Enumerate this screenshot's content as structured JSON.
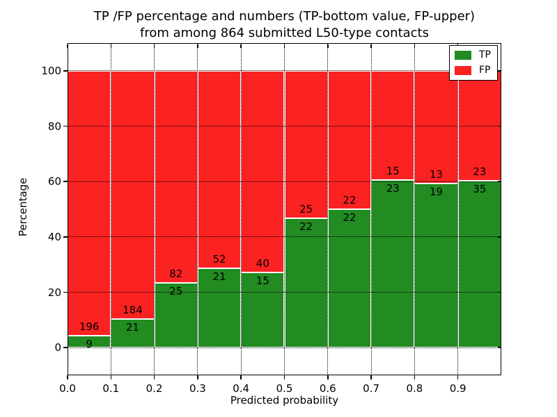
{
  "figure": {
    "title_line1": "TP /FP percentage and numbers (TP-bottom value, FP-upper)",
    "title_line2": "from among 864 submitted L50-type contacts",
    "xlabel": "Predicted probability",
    "ylabel": "Percentage"
  },
  "legend": {
    "items": [
      {
        "label": "TP",
        "color": "#228b22"
      },
      {
        "label": "FP",
        "color": "#fb2222"
      }
    ]
  },
  "chart_data": {
    "type": "bar",
    "stacked": true,
    "title": "TP /FP percentage and numbers (TP-bottom value, FP-upper) from among 864 submitted L50-type contacts",
    "xlabel": "Predicted probability",
    "ylabel": "Percentage",
    "bin_starts": [
      0.0,
      0.1,
      0.2,
      0.3,
      0.4,
      0.5,
      0.6,
      0.7,
      0.8,
      0.9
    ],
    "bin_width": 0.1,
    "x_tick_labels": [
      "0.0",
      "0.1",
      "0.2",
      "0.3",
      "0.4",
      "0.5",
      "0.6",
      "0.7",
      "0.8",
      "0.9"
    ],
    "y_ticks": [
      0,
      20,
      40,
      60,
      80,
      100
    ],
    "xlim": [
      0.0,
      1.0
    ],
    "ylim": [
      -10,
      110
    ],
    "units": "bars are stacked TP/FP percentages of each bin, summing to 100%; labels show raw counts",
    "series": [
      {
        "name": "TP",
        "color": "#228b22",
        "counts": [
          9,
          21,
          25,
          21,
          15,
          22,
          22,
          23,
          19,
          35
        ]
      },
      {
        "name": "FP",
        "color": "#fb2222",
        "counts": [
          196,
          184,
          82,
          52,
          40,
          25,
          22,
          15,
          13,
          23
        ]
      }
    ],
    "total_contacts": 864,
    "grid": {
      "style": "dotted",
      "color": "#000000",
      "axes": "both"
    },
    "legend_position": "upper-right",
    "bar_edge_color": "#ffffff"
  }
}
